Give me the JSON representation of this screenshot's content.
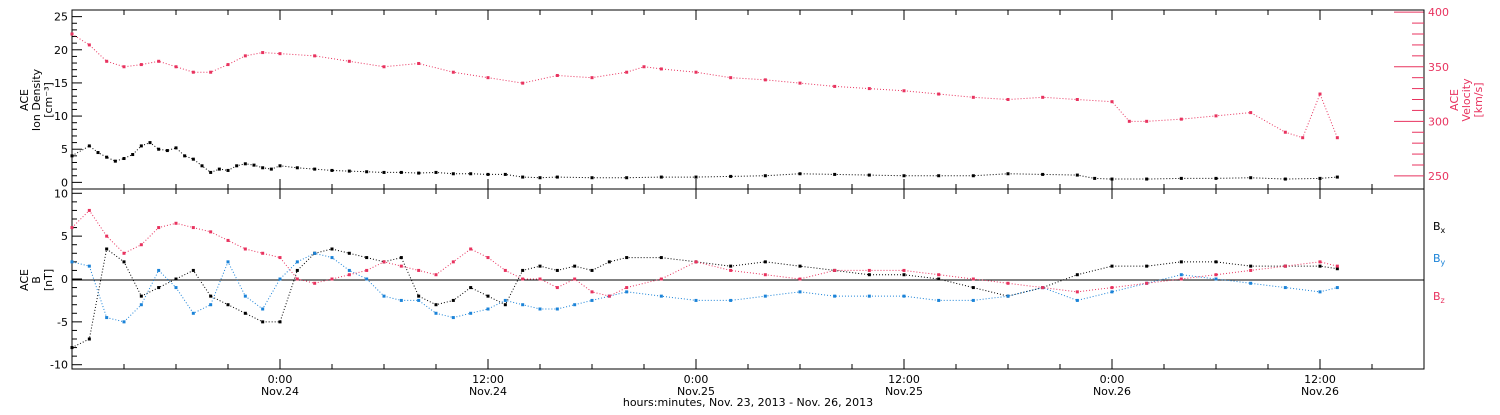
{
  "colors": {
    "density": "#000000",
    "velocity": "#e8335f",
    "bx": "#000000",
    "by": "#1b83d8",
    "bz": "#e8335f",
    "axis": "#000000"
  },
  "xaxis": {
    "title": "hours:minutes, Nov. 23, 2013 - Nov. 26, 2013",
    "ticks": [
      {
        "hour": 30,
        "time": "0:00",
        "date": "Nov.24"
      },
      {
        "hour": 42,
        "time": "12:00",
        "date": "Nov.24"
      },
      {
        "hour": 54,
        "time": "0:00",
        "date": "Nov.25"
      },
      {
        "hour": 66,
        "time": "12:00",
        "date": "Nov.25"
      },
      {
        "hour": 78,
        "time": "0:00",
        "date": "Nov.26"
      },
      {
        "hour": 90,
        "time": "12:00",
        "date": "Nov.26"
      }
    ],
    "range_hours": [
      18,
      96
    ]
  },
  "panel1": {
    "left_label_lines": [
      "ACE",
      "Ion Density",
      "[cm⁻³]"
    ],
    "right_label_lines": [
      "ACE",
      "Velocity",
      "[km/s]"
    ],
    "left_ticks": [
      "0",
      "5",
      "10",
      "15",
      "20",
      "25"
    ],
    "right_ticks": [
      "250",
      "300",
      "350",
      "400"
    ]
  },
  "panel2": {
    "left_label_lines": [
      "ACE",
      "B",
      "[nT]"
    ],
    "left_ticks": [
      "-10",
      "-5",
      "0",
      "5",
      "10"
    ],
    "legend": [
      {
        "key": "bx",
        "base": "B",
        "sub": "x"
      },
      {
        "key": "by",
        "base": "B",
        "sub": "y"
      },
      {
        "key": "bz",
        "base": "B",
        "sub": "z"
      }
    ]
  },
  "chart_data": [
    {
      "type": "scatter",
      "title": "",
      "xlabel": "hours:minutes, Nov. 23, 2013 - Nov. 26, 2013",
      "x_unit": "hours since 2013-11-23 00:00 UT",
      "xlim": [
        18,
        96
      ],
      "ylabel": "ACE Ion Density [cm⁻³]",
      "ylim": [
        -1,
        26
      ],
      "y2label": "ACE Velocity [km/s]",
      "y2lim": [
        238,
        402
      ],
      "grid": false,
      "series": [
        {
          "name": "ACE Ion Density",
          "axis": "left",
          "x": [
            18.0,
            19.0,
            19.5,
            20.0,
            20.5,
            21.0,
            21.5,
            22.0,
            22.5,
            23.0,
            23.5,
            24.0,
            24.5,
            25.0,
            25.5,
            26.0,
            26.5,
            27.0,
            27.5,
            28.0,
            28.5,
            29.0,
            29.5,
            30.0,
            31.0,
            32.0,
            33.0,
            34.0,
            35.0,
            36.0,
            37.0,
            38.0,
            39.0,
            40.0,
            41.0,
            42.0,
            43.0,
            44.0,
            45.0,
            46.0,
            48.0,
            50.0,
            52.0,
            54.0,
            56.0,
            58.0,
            60.0,
            62.0,
            64.0,
            66.0,
            68.0,
            70.0,
            72.0,
            74.0,
            76.0,
            77.0,
            78.0,
            80.0,
            82.0,
            84.0,
            86.0,
            88.0,
            90.0,
            91.0
          ],
          "y": [
            4.0,
            5.5,
            4.5,
            3.8,
            3.2,
            3.6,
            4.2,
            5.5,
            6.0,
            5.0,
            4.8,
            5.2,
            4.0,
            3.5,
            2.5,
            1.5,
            2.0,
            1.8,
            2.5,
            2.8,
            2.6,
            2.2,
            2.0,
            2.5,
            2.2,
            2.0,
            1.8,
            1.7,
            1.6,
            1.5,
            1.5,
            1.4,
            1.5,
            1.3,
            1.3,
            1.2,
            1.2,
            0.8,
            0.7,
            0.8,
            0.7,
            0.7,
            0.8,
            0.8,
            0.9,
            1.0,
            1.3,
            1.2,
            1.1,
            1.0,
            1.0,
            1.0,
            1.3,
            1.2,
            1.1,
            0.6,
            0.5,
            0.5,
            0.6,
            0.6,
            0.7,
            0.5,
            0.6,
            0.8
          ]
        },
        {
          "name": "ACE Velocity",
          "axis": "right",
          "x": [
            18.0,
            19.0,
            20.0,
            21.0,
            22.0,
            23.0,
            24.0,
            25.0,
            26.0,
            27.0,
            28.0,
            29.0,
            30.0,
            32.0,
            34.0,
            36.0,
            38.0,
            40.0,
            42.0,
            44.0,
            46.0,
            48.0,
            50.0,
            51.0,
            52.0,
            54.0,
            56.0,
            58.0,
            60.0,
            62.0,
            64.0,
            66.0,
            68.0,
            70.0,
            72.0,
            74.0,
            76.0,
            78.0,
            79.0,
            80.0,
            82.0,
            84.0,
            86.0,
            88.0,
            89.0,
            90.0,
            91.0
          ],
          "y": [
            380.0,
            370.0,
            355.0,
            350.0,
            352.0,
            355.0,
            350.0,
            345.0,
            345.0,
            352.0,
            360.0,
            363.0,
            362.0,
            360.0,
            355.0,
            350.0,
            353.0,
            345.0,
            340.0,
            335.0,
            342.0,
            340.0,
            345.0,
            350.0,
            348.0,
            345.0,
            340.0,
            338.0,
            335.0,
            332.0,
            330.0,
            328.0,
            325.0,
            322.0,
            320.0,
            322.0,
            320.0,
            318.0,
            300.0,
            300.0,
            302.0,
            305.0,
            308.0,
            290.0,
            285.0,
            325.0,
            285.0
          ]
        }
      ]
    },
    {
      "type": "scatter",
      "title": "",
      "xlabel": "hours:minutes, Nov. 23, 2013 - Nov. 26, 2013",
      "x_unit": "hours since 2013-11-23 00:00 UT",
      "xlim": [
        18,
        96
      ],
      "ylabel": "ACE B [nT]",
      "ylim": [
        -10.5,
        10.5
      ],
      "grid": false,
      "zero_line": true,
      "series": [
        {
          "name": "Bx",
          "x": [
            18.0,
            19.0,
            20.0,
            21.0,
            22.0,
            23.0,
            24.0,
            25.0,
            26.0,
            27.0,
            28.0,
            29.0,
            30.0,
            31.0,
            32.0,
            33.0,
            34.0,
            35.0,
            36.0,
            37.0,
            38.0,
            39.0,
            40.0,
            41.0,
            42.0,
            43.0,
            44.0,
            45.0,
            46.0,
            47.0,
            48.0,
            49.0,
            50.0,
            52.0,
            54.0,
            56.0,
            58.0,
            60.0,
            62.0,
            64.0,
            66.0,
            68.0,
            70.0,
            72.0,
            74.0,
            76.0,
            78.0,
            80.0,
            82.0,
            84.0,
            86.0,
            88.0,
            90.0,
            91.0
          ],
          "y": [
            -8.0,
            -7.0,
            3.5,
            2.0,
            -2.0,
            -1.0,
            0.0,
            1.0,
            -2.0,
            -3.0,
            -4.0,
            -5.0,
            -5.0,
            1.0,
            3.0,
            3.5,
            3.0,
            2.5,
            2.0,
            2.5,
            -2.0,
            -3.0,
            -2.5,
            -1.0,
            -2.0,
            -3.0,
            1.0,
            1.5,
            1.0,
            1.5,
            1.0,
            2.0,
            2.5,
            2.5,
            2.0,
            1.5,
            2.0,
            1.5,
            1.0,
            0.5,
            0.5,
            0.0,
            -1.0,
            -2.0,
            -1.0,
            0.5,
            1.5,
            1.5,
            2.0,
            2.0,
            1.5,
            1.5,
            1.5,
            1.2
          ]
        },
        {
          "name": "By",
          "x": [
            18.0,
            19.0,
            20.0,
            21.0,
            22.0,
            23.0,
            24.0,
            25.0,
            26.0,
            27.0,
            28.0,
            29.0,
            30.0,
            31.0,
            32.0,
            33.0,
            34.0,
            35.0,
            36.0,
            37.0,
            38.0,
            39.0,
            40.0,
            41.0,
            42.0,
            43.0,
            44.0,
            45.0,
            46.0,
            47.0,
            48.0,
            49.0,
            50.0,
            52.0,
            54.0,
            56.0,
            58.0,
            60.0,
            62.0,
            64.0,
            66.0,
            68.0,
            70.0,
            72.0,
            74.0,
            76.0,
            78.0,
            80.0,
            82.0,
            84.0,
            86.0,
            88.0,
            90.0,
            91.0
          ],
          "y": [
            2.0,
            1.5,
            -4.5,
            -5.0,
            -3.0,
            1.0,
            -1.0,
            -4.0,
            -3.0,
            2.0,
            -2.0,
            -3.5,
            0.0,
            2.0,
            3.0,
            2.5,
            1.0,
            0.0,
            -2.0,
            -2.5,
            -2.5,
            -4.0,
            -4.5,
            -4.0,
            -3.5,
            -2.5,
            -3.0,
            -3.5,
            -3.5,
            -3.0,
            -2.5,
            -2.0,
            -1.5,
            -2.0,
            -2.5,
            -2.5,
            -2.0,
            -1.5,
            -2.0,
            -2.0,
            -2.0,
            -2.5,
            -2.5,
            -2.0,
            -1.0,
            -2.5,
            -1.5,
            -0.5,
            0.5,
            0.0,
            -0.5,
            -1.0,
            -1.5,
            -1.0
          ]
        },
        {
          "name": "Bz",
          "x": [
            18.0,
            19.0,
            20.0,
            21.0,
            22.0,
            23.0,
            24.0,
            25.0,
            26.0,
            27.0,
            28.0,
            29.0,
            30.0,
            31.0,
            32.0,
            33.0,
            34.0,
            35.0,
            36.0,
            37.0,
            38.0,
            39.0,
            40.0,
            41.0,
            42.0,
            43.0,
            44.0,
            45.0,
            46.0,
            47.0,
            48.0,
            49.0,
            50.0,
            52.0,
            54.0,
            56.0,
            58.0,
            60.0,
            62.0,
            64.0,
            66.0,
            68.0,
            70.0,
            72.0,
            74.0,
            76.0,
            78.0,
            80.0,
            82.0,
            84.0,
            86.0,
            88.0,
            90.0,
            91.0
          ],
          "y": [
            6.0,
            8.0,
            5.0,
            3.0,
            4.0,
            6.0,
            6.5,
            6.0,
            5.5,
            4.5,
            3.5,
            3.0,
            2.5,
            0.0,
            -0.5,
            0.0,
            0.5,
            1.0,
            2.0,
            1.5,
            1.0,
            0.5,
            2.0,
            3.5,
            2.5,
            1.0,
            0.0,
            0.0,
            -1.0,
            0.0,
            -1.5,
            -2.0,
            -1.0,
            0.0,
            2.0,
            1.0,
            0.5,
            0.0,
            1.0,
            1.0,
            1.0,
            0.5,
            0.0,
            -0.5,
            -1.0,
            -1.5,
            -1.0,
            -0.5,
            0.0,
            0.5,
            1.0,
            1.5,
            2.0,
            1.5
          ]
        }
      ]
    }
  ]
}
